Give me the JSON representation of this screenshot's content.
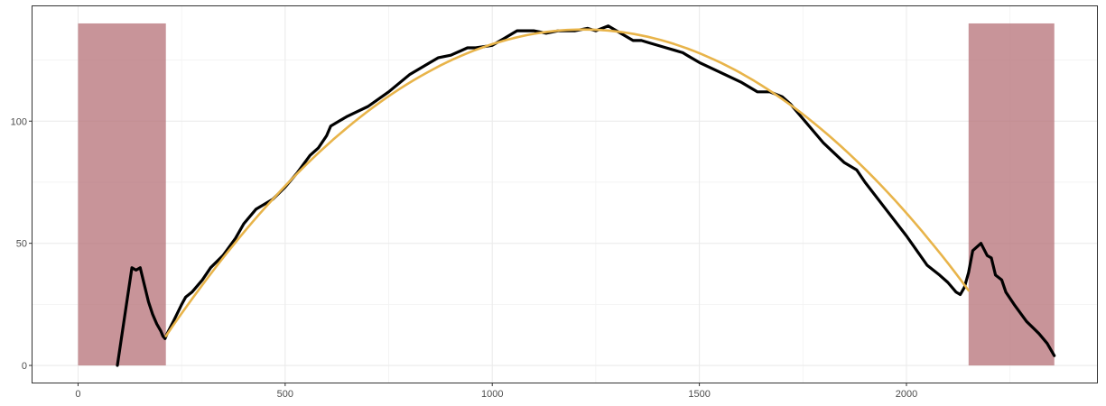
{
  "chart_data": {
    "type": "line",
    "xlim": [
      -110,
      2460
    ],
    "ylim": [
      -7,
      147
    ],
    "x_ticks": [
      0,
      500,
      1000,
      1500,
      2000
    ],
    "x_tick_labels": [
      "0",
      "500",
      "1000",
      "1500",
      "2000"
    ],
    "y_ticks": [
      0,
      50,
      100
    ],
    "y_tick_labels": [
      "0",
      "50",
      "100"
    ],
    "grid": true,
    "legend": "none",
    "shaded_regions": [
      {
        "x_start": 0,
        "x_end": 212,
        "y_start": 0,
        "y_end": 140,
        "color": "#b36b71"
      },
      {
        "x_start": 2150,
        "x_end": 2357,
        "y_start": 0,
        "y_end": 140,
        "color": "#b36b71"
      }
    ],
    "series": [
      {
        "style": "observed",
        "color": "#000000",
        "x": [
          95,
          130,
          140,
          150,
          160,
          170,
          180,
          190,
          200,
          205,
          210,
          215,
          230,
          250,
          260,
          275,
          300,
          320,
          350,
          380,
          400,
          430,
          470,
          500,
          530,
          560,
          580,
          600,
          610,
          630,
          650,
          700,
          750,
          800,
          850,
          870,
          900,
          940,
          960,
          1000,
          1030,
          1050,
          1060,
          1080,
          1100,
          1130,
          1160,
          1200,
          1230,
          1250,
          1280,
          1300,
          1320,
          1340,
          1360,
          1380,
          1420,
          1440,
          1460,
          1480,
          1500,
          1550,
          1600,
          1640,
          1670,
          1700,
          1720,
          1750,
          1800,
          1850,
          1880,
          1900,
          1950,
          2000,
          2050,
          2080,
          2100,
          2120,
          2130,
          2140,
          2150,
          2160,
          2180,
          2195,
          2205,
          2215,
          2230,
          2240,
          2260,
          2290,
          2320,
          2340,
          2357
        ],
        "y": [
          0,
          40,
          39,
          40,
          33,
          26,
          21,
          17,
          14,
          12,
          11,
          13,
          18,
          25,
          28,
          30,
          35,
          40,
          45,
          52,
          58,
          64,
          68,
          73,
          79,
          86,
          89,
          94,
          98,
          100,
          102,
          106,
          112,
          119,
          124,
          126,
          127,
          130,
          130,
          131,
          134,
          136,
          137,
          137,
          137,
          136,
          137,
          137,
          138,
          137,
          139,
          137,
          135,
          133,
          133,
          132,
          130,
          129,
          128,
          126,
          124,
          120,
          116,
          112,
          112,
          110,
          107,
          101,
          91,
          83,
          80,
          75,
          64,
          53,
          41,
          37,
          34,
          30,
          29,
          32,
          38,
          47,
          50,
          45,
          44,
          37,
          35,
          30,
          25,
          18,
          13,
          9,
          4
        ]
      },
      {
        "style": "fitted",
        "color": "#e8b44a",
        "x_start": 212,
        "x_end": 2150,
        "vertex_x": 1220,
        "vertex_y": 137.5,
        "end_y": 12
      }
    ]
  }
}
